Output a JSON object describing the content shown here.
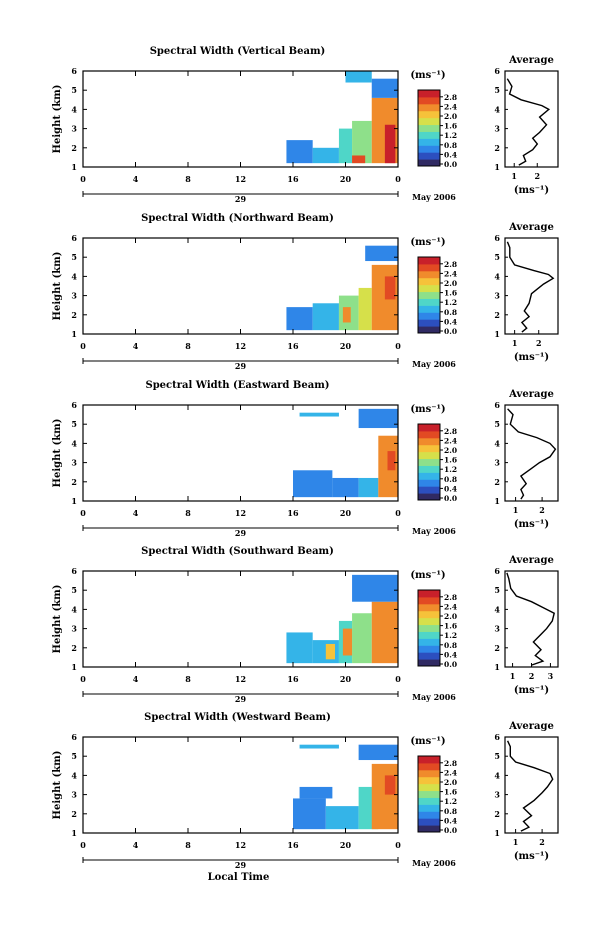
{
  "chart_data": {
    "type": "heatmap",
    "colorbar": {
      "unit_label": "(ms⁻¹)",
      "ticks": [
        "0.0",
        "0.4",
        "0.8",
        "1.2",
        "1.6",
        "2.0",
        "2.4",
        "2.8"
      ],
      "range": [
        0,
        3.0
      ],
      "colors": [
        "#302a63",
        "#2c4fbf",
        "#2f86e8",
        "#34b4e8",
        "#4fd6c8",
        "#8ee08a",
        "#d6e04a",
        "#f6c23a",
        "#f08b2c",
        "#e24a23",
        "#c8202a"
      ]
    },
    "x_axis": {
      "ticks": [
        "0",
        "4",
        "8",
        "12",
        "16",
        "20",
        "0"
      ],
      "tick_values": [
        0,
        4,
        8,
        12,
        16,
        20,
        24
      ],
      "range": [
        0,
        24
      ],
      "day_label": "29",
      "month_label": "May 2006",
      "xlabel": "Local Time"
    },
    "y_axis": {
      "ylabel": "Height (km)",
      "ticks": [
        "1",
        "2",
        "3",
        "4",
        "5",
        "6"
      ],
      "range": [
        1,
        6
      ]
    },
    "panels": [
      {
        "title": "Spectral Width (Vertical Beam)",
        "avg_title": "Average",
        "avg_ticks": [
          "1",
          "2"
        ],
        "avg_tick_values": [
          1,
          2
        ],
        "avg_range": [
          0.6,
          2.9
        ],
        "avg_xlabel": "(ms⁻¹)",
        "avg_profile": [
          [
            1.2,
            1.1
          ],
          [
            1.5,
            1.3
          ],
          [
            1.4,
            1.6
          ],
          [
            1.8,
            1.9
          ],
          [
            2.0,
            2.2
          ],
          [
            1.8,
            2.5
          ],
          [
            2.1,
            2.8
          ],
          [
            2.4,
            3.2
          ],
          [
            2.1,
            3.6
          ],
          [
            2.5,
            4.0
          ],
          [
            2.2,
            4.2
          ],
          [
            1.3,
            4.5
          ],
          [
            0.8,
            4.8
          ],
          [
            0.9,
            5.2
          ],
          [
            0.7,
            5.6
          ]
        ],
        "cells": [
          {
            "t": [
              15.5,
              17.5
            ],
            "h": [
              1.2,
              2.4
            ],
            "v": 0.8
          },
          {
            "t": [
              17.5,
              19.5
            ],
            "h": [
              1.2,
              2.0
            ],
            "v": 0.9
          },
          {
            "t": [
              19.5,
              20.5
            ],
            "h": [
              1.2,
              3.0
            ],
            "v": 1.3
          },
          {
            "t": [
              20.5,
              22.0
            ],
            "h": [
              1.2,
              3.4
            ],
            "v": 1.6
          },
          {
            "t": [
              20.5,
              21.5
            ],
            "h": [
              1.2,
              1.6
            ],
            "v": 2.6
          },
          {
            "t": [
              22.0,
              24.0
            ],
            "h": [
              1.2,
              4.6
            ],
            "v": 2.4
          },
          {
            "t": [
              23.0,
              23.8
            ],
            "h": [
              1.2,
              3.2
            ],
            "v": 2.8
          },
          {
            "t": [
              20.0,
              22.0
            ],
            "h": [
              5.4,
              6.0
            ],
            "v": 0.9
          },
          {
            "t": [
              22.0,
              24.0
            ],
            "h": [
              4.6,
              5.6
            ],
            "v": 0.8
          }
        ]
      },
      {
        "title": "Spectral Width (Northward Beam)",
        "avg_title": "Average",
        "avg_ticks": [
          "1",
          "2"
        ],
        "avg_tick_values": [
          1,
          2
        ],
        "avg_range": [
          0.6,
          2.8
        ],
        "avg_xlabel": "(ms⁻¹)",
        "avg_profile": [
          [
            1.3,
            1.1
          ],
          [
            1.5,
            1.3
          ],
          [
            1.3,
            1.6
          ],
          [
            1.6,
            1.9
          ],
          [
            1.4,
            2.2
          ],
          [
            1.6,
            2.6
          ],
          [
            1.7,
            3.1
          ],
          [
            2.2,
            3.6
          ],
          [
            2.6,
            3.9
          ],
          [
            2.4,
            4.1
          ],
          [
            1.8,
            4.3
          ],
          [
            1.0,
            4.6
          ],
          [
            0.8,
            5.0
          ],
          [
            0.8,
            5.5
          ],
          [
            0.7,
            5.8
          ]
        ],
        "cells": [
          {
            "t": [
              15.5,
              17.5
            ],
            "h": [
              1.2,
              2.4
            ],
            "v": 0.7
          },
          {
            "t": [
              17.5,
              19.5
            ],
            "h": [
              1.2,
              2.6
            ],
            "v": 0.9
          },
          {
            "t": [
              19.5,
              21.0
            ],
            "h": [
              1.2,
              3.0
            ],
            "v": 1.4
          },
          {
            "t": [
              19.8,
              20.4
            ],
            "h": [
              1.6,
              2.4
            ],
            "v": 2.2
          },
          {
            "t": [
              21.0,
              22.0
            ],
            "h": [
              1.2,
              3.4
            ],
            "v": 1.7
          },
          {
            "t": [
              22.0,
              24.0
            ],
            "h": [
              1.2,
              4.6
            ],
            "v": 2.3
          },
          {
            "t": [
              23.0,
              23.8
            ],
            "h": [
              2.8,
              4.0
            ],
            "v": 2.7
          },
          {
            "t": [
              21.5,
              24.0
            ],
            "h": [
              4.8,
              5.6
            ],
            "v": 0.8
          }
        ]
      },
      {
        "title": "Spectral Width (Eastward Beam)",
        "avg_title": "Average",
        "avg_ticks": [
          "1",
          "2"
        ],
        "avg_tick_values": [
          1,
          2
        ],
        "avg_range": [
          0.6,
          2.6
        ],
        "avg_xlabel": "(ms⁻¹)",
        "avg_profile": [
          [
            1.2,
            1.1
          ],
          [
            1.3,
            1.3
          ],
          [
            1.2,
            1.6
          ],
          [
            1.4,
            1.9
          ],
          [
            1.2,
            2.3
          ],
          [
            1.6,
            2.7
          ],
          [
            1.9,
            3.0
          ],
          [
            2.3,
            3.3
          ],
          [
            2.5,
            3.7
          ],
          [
            2.3,
            4.0
          ],
          [
            1.8,
            4.3
          ],
          [
            1.1,
            4.6
          ],
          [
            0.8,
            5.0
          ],
          [
            0.9,
            5.5
          ],
          [
            0.7,
            5.8
          ]
        ],
        "cells": [
          {
            "t": [
              16.0,
              19.0
            ],
            "h": [
              1.2,
              2.6
            ],
            "v": 0.7
          },
          {
            "t": [
              19.0,
              21.0
            ],
            "h": [
              1.2,
              2.2
            ],
            "v": 0.8
          },
          {
            "t": [
              16.5,
              19.5
            ],
            "h": [
              5.4,
              5.6
            ],
            "v": 1.0
          },
          {
            "t": [
              21.0,
              22.5
            ],
            "h": [
              1.2,
              2.2
            ],
            "v": 0.9
          },
          {
            "t": [
              22.5,
              24.0
            ],
            "h": [
              1.2,
              4.4
            ],
            "v": 2.3
          },
          {
            "t": [
              23.2,
              23.8
            ],
            "h": [
              2.6,
              3.6
            ],
            "v": 2.7
          },
          {
            "t": [
              21.0,
              24.0
            ],
            "h": [
              4.8,
              5.8
            ],
            "v": 0.8
          }
        ]
      },
      {
        "title": "Spectral Width (Southward Beam)",
        "avg_title": "Average",
        "avg_ticks": [
          "1",
          "2",
          "3"
        ],
        "avg_tick_values": [
          1,
          2,
          3
        ],
        "avg_range": [
          0.6,
          3.4
        ],
        "avg_xlabel": "(ms⁻¹)",
        "avg_profile": [
          [
            2.0,
            1.1
          ],
          [
            2.6,
            1.3
          ],
          [
            2.2,
            1.6
          ],
          [
            2.5,
            1.9
          ],
          [
            2.1,
            2.3
          ],
          [
            2.4,
            2.6
          ],
          [
            2.8,
            3.0
          ],
          [
            3.1,
            3.4
          ],
          [
            3.2,
            3.8
          ],
          [
            2.6,
            4.1
          ],
          [
            2.0,
            4.4
          ],
          [
            1.2,
            4.7
          ],
          [
            0.9,
            5.1
          ],
          [
            0.8,
            5.6
          ],
          [
            0.7,
            5.9
          ]
        ],
        "cells": [
          {
            "t": [
              15.5,
              17.5
            ],
            "h": [
              1.2,
              2.8
            ],
            "v": 0.9
          },
          {
            "t": [
              17.5,
              19.5
            ],
            "h": [
              1.2,
              2.4
            ],
            "v": 1.0
          },
          {
            "t": [
              18.5,
              19.2
            ],
            "h": [
              1.4,
              2.2
            ],
            "v": 2.0
          },
          {
            "t": [
              19.5,
              20.5
            ],
            "h": [
              1.2,
              3.4
            ],
            "v": 1.2
          },
          {
            "t": [
              20.5,
              22.0
            ],
            "h": [
              1.2,
              3.8
            ],
            "v": 1.5
          },
          {
            "t": [
              19.8,
              20.5
            ],
            "h": [
              1.6,
              3.0
            ],
            "v": 2.4
          },
          {
            "t": [
              22.0,
              24.0
            ],
            "h": [
              1.2,
              4.4
            ],
            "v": 2.4
          },
          {
            "t": [
              20.5,
              24.0
            ],
            "h": [
              4.4,
              5.8
            ],
            "v": 0.8
          }
        ]
      },
      {
        "title": "Spectral Width (Westward Beam)",
        "avg_title": "Average",
        "avg_ticks": [
          "1",
          "2"
        ],
        "avg_tick_values": [
          1,
          2
        ],
        "avg_range": [
          0.6,
          2.6
        ],
        "avg_xlabel": "(ms⁻¹)",
        "avg_profile": [
          [
            1.2,
            1.1
          ],
          [
            1.5,
            1.3
          ],
          [
            1.3,
            1.6
          ],
          [
            1.6,
            1.9
          ],
          [
            1.3,
            2.3
          ],
          [
            1.7,
            2.7
          ],
          [
            2.0,
            3.1
          ],
          [
            2.2,
            3.4
          ],
          [
            2.4,
            3.8
          ],
          [
            2.3,
            4.1
          ],
          [
            1.7,
            4.4
          ],
          [
            1.0,
            4.7
          ],
          [
            0.8,
            5.0
          ],
          [
            0.8,
            5.5
          ],
          [
            0.7,
            5.8
          ]
        ],
        "cells": [
          {
            "t": [
              16.0,
              18.5
            ],
            "h": [
              1.2,
              2.8
            ],
            "v": 0.8
          },
          {
            "t": [
              16.5,
              19.0
            ],
            "h": [
              2.8,
              3.4
            ],
            "v": 0.6
          },
          {
            "t": [
              18.5,
              21.0
            ],
            "h": [
              1.2,
              2.4
            ],
            "v": 0.9
          },
          {
            "t": [
              21.0,
              22.5
            ],
            "h": [
              1.2,
              3.4
            ],
            "v": 1.1
          },
          {
            "t": [
              22.0,
              24.0
            ],
            "h": [
              1.2,
              4.6
            ],
            "v": 2.3
          },
          {
            "t": [
              23.0,
              23.8
            ],
            "h": [
              3.0,
              4.0
            ],
            "v": 2.7
          },
          {
            "t": [
              16.5,
              19.5
            ],
            "h": [
              5.4,
              5.6
            ],
            "v": 1.0
          },
          {
            "t": [
              21.0,
              24.0
            ],
            "h": [
              4.8,
              5.6
            ],
            "v": 0.8
          }
        ]
      }
    ]
  }
}
